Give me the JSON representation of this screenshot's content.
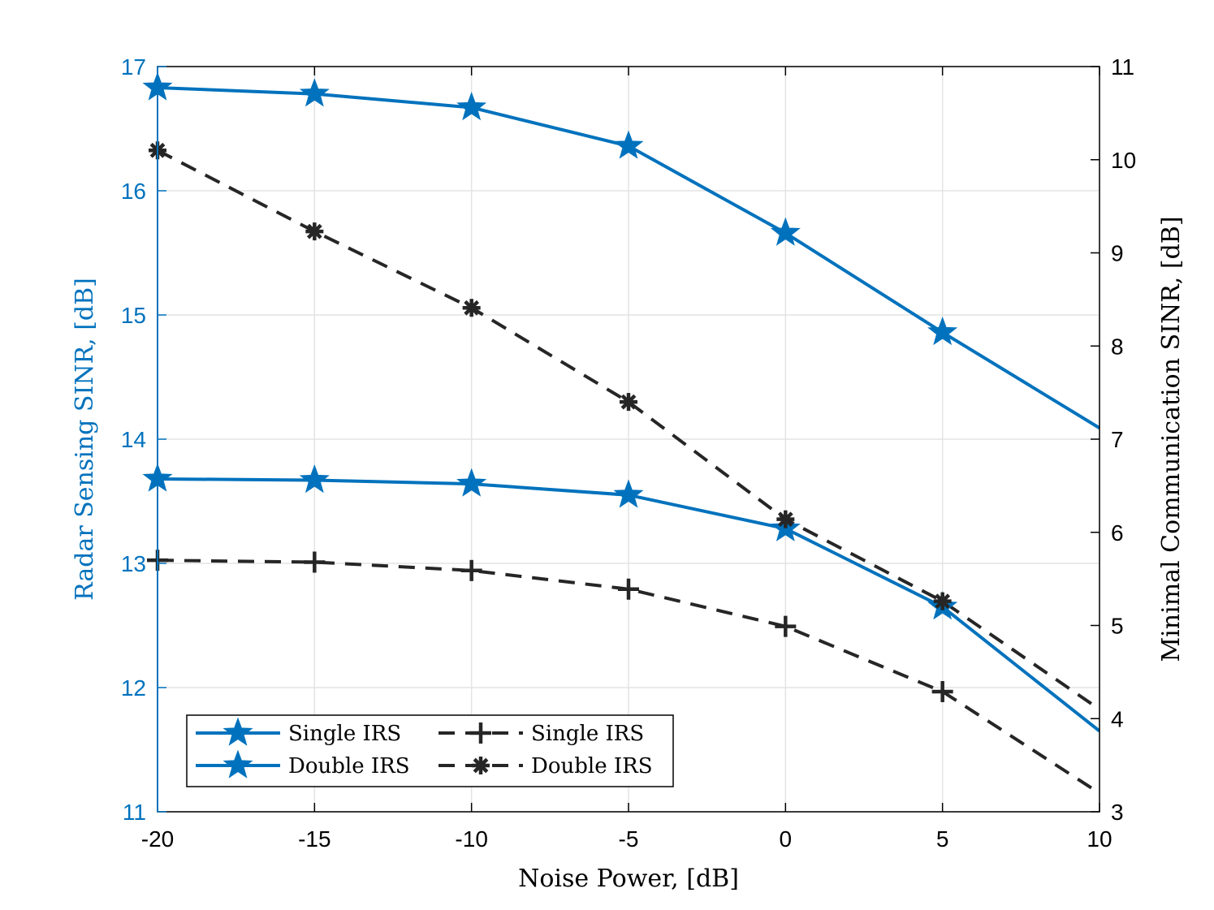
{
  "chart_data": {
    "type": "line",
    "xlabel": "Noise Power, [dB]",
    "ylabel_left": "Radar Sensing SINR, [dB]",
    "ylabel_right": "Minimal Communication SINR, [dB]",
    "x": [
      -20,
      -15,
      -10,
      -5,
      0,
      5,
      10
    ],
    "xlim": [
      -20,
      10
    ],
    "ylim_left": [
      11,
      17
    ],
    "ylim_right": [
      3,
      11
    ],
    "x_ticks": [
      "-20",
      "-15",
      "-10",
      "-5",
      "0",
      "5",
      "10"
    ],
    "y_ticks_left": [
      "11",
      "12",
      "13",
      "14",
      "15",
      "16",
      "17"
    ],
    "y_ticks_right": [
      "3",
      "4",
      "5",
      "6",
      "7",
      "8",
      "9",
      "10",
      "11"
    ],
    "grid": true,
    "legend_position": "bottom-left",
    "series": [
      {
        "name": "Single IRS",
        "axis": "left",
        "style": "solid",
        "marker": "star",
        "color": "#0072BD",
        "values": [
          13.68,
          13.67,
          13.64,
          13.55,
          13.28,
          12.65,
          11.65
        ]
      },
      {
        "name": "Double IRS",
        "axis": "left",
        "style": "solid",
        "marker": "star",
        "color": "#0072BD",
        "values": [
          16.83,
          16.78,
          16.67,
          16.36,
          15.66,
          14.86,
          14.09
        ]
      },
      {
        "name": "Single IRS",
        "axis": "right",
        "style": "dashed",
        "marker": "plus",
        "color": "#262626",
        "values": [
          5.7,
          5.68,
          5.59,
          5.39,
          4.99,
          4.29,
          3.2
        ]
      },
      {
        "name": "Double IRS",
        "axis": "right",
        "style": "dashed",
        "marker": "asterisk",
        "color": "#262626",
        "values": [
          10.1,
          9.23,
          8.41,
          7.4,
          6.14,
          5.26,
          4.1
        ]
      }
    ]
  }
}
